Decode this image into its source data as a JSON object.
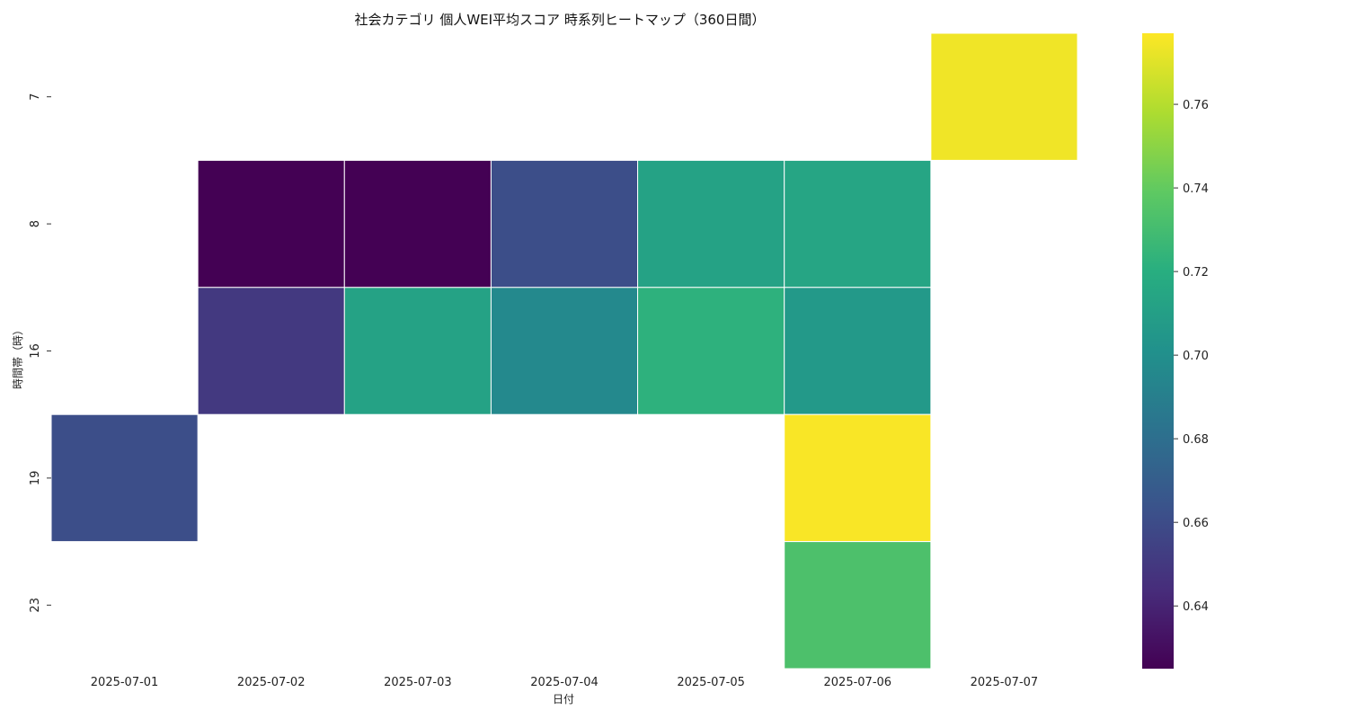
{
  "chart_data": {
    "type": "heatmap",
    "title": "社会カテゴリ 個人WEI平均スコア 時系列ヒートマップ（360日間）",
    "xlabel": "日付",
    "ylabel": "時間帯（時）",
    "x_categories": [
      "2025-07-01",
      "2025-07-02",
      "2025-07-03",
      "2025-07-04",
      "2025-07-05",
      "2025-07-06",
      "2025-07-07"
    ],
    "y_categories": [
      "7",
      "8",
      "16",
      "19",
      "23"
    ],
    "values": [
      [
        null,
        null,
        null,
        null,
        null,
        null,
        0.774
      ],
      [
        null,
        0.625,
        0.625,
        0.661,
        0.712,
        0.714,
        null
      ],
      [
        null,
        0.65,
        0.712,
        0.696,
        0.722,
        0.706,
        null
      ],
      [
        0.661,
        null,
        null,
        null,
        null,
        0.776,
        null
      ],
      [
        null,
        null,
        null,
        null,
        null,
        0.733,
        null
      ]
    ],
    "colormap": "viridis",
    "colorbar": {
      "min": 0.625,
      "max": 0.777,
      "ticks": [
        0.64,
        0.66,
        0.68,
        0.7,
        0.72,
        0.74,
        0.76
      ],
      "tick_labels": [
        "0.64",
        "0.66",
        "0.68",
        "0.70",
        "0.72",
        "0.74",
        "0.76"
      ]
    },
    "grid": false
  }
}
